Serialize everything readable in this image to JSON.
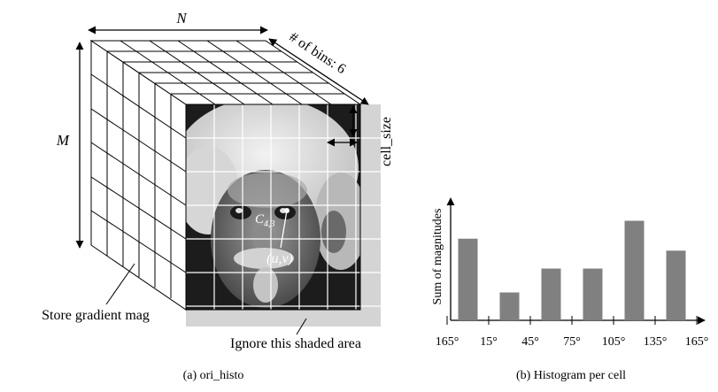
{
  "left_panel": {
    "n_label": "N",
    "m_label": "M",
    "bins_label": "# of bins: 6",
    "cell_size_label": "cell_size",
    "cell_point_label_base": "C",
    "cell_point_label_sub": "4,3",
    "uv_label": "(u,v)",
    "store_label": "Store gradient mag",
    "ignore_label": "Ignore this shaded area",
    "caption": "(a) ori_histo"
  },
  "right_panel": {
    "caption": "(b) Histogram per cell"
  },
  "chart_data": {
    "type": "bar",
    "ylabel": "Sum of magnitudes",
    "xlabel": "",
    "tick_labels": [
      "165°",
      "15°",
      "45°",
      "75°",
      "105°",
      "135°",
      "165°"
    ],
    "bin_edges": [
      -15,
      15,
      45,
      75,
      105,
      135,
      165
    ],
    "bin_centers": [
      0,
      30,
      60,
      90,
      120,
      150
    ],
    "values": [
      0.82,
      0.28,
      0.52,
      0.52,
      1.0,
      0.7
    ],
    "ylim": [
      0,
      1.12
    ],
    "grid": false,
    "bar_color": "#808080"
  },
  "colors": {
    "line": "#000000",
    "shaded_area": "#d4d4d4",
    "bar": "#808080"
  }
}
